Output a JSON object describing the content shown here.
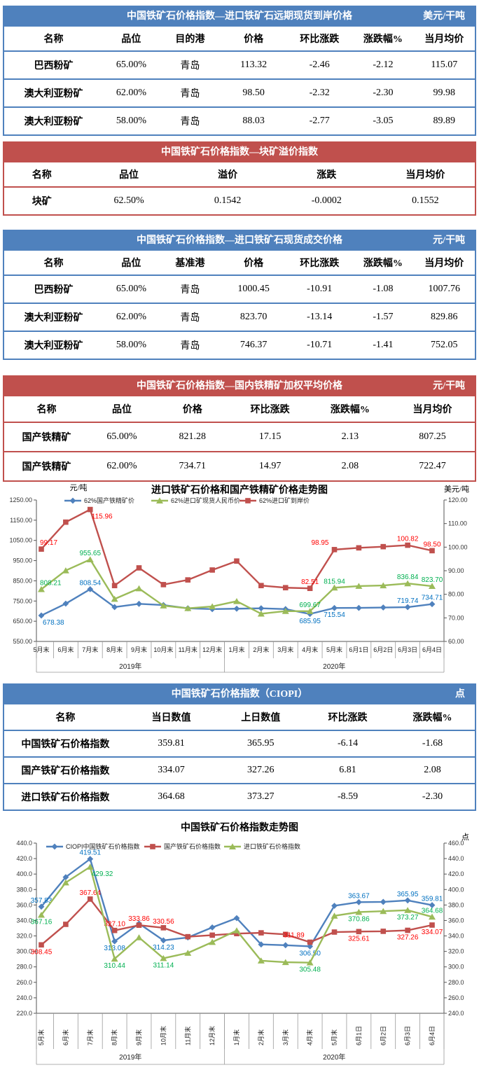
{
  "colors": {
    "header_blue": "#4F81BD",
    "header_red": "#C0504D",
    "series_blue": "#4F81BD",
    "series_red": "#C0504D",
    "series_green": "#9BBB59",
    "label_blue": "#0070C0",
    "label_red": "#FF0000",
    "label_green": "#00B050"
  },
  "tables": [
    {
      "theme": "blue",
      "title": "中国铁矿石价格指数—进口铁矿石远期现货到岸价格",
      "unit": "美元/干吨",
      "headers": [
        "名称",
        "品位",
        "目的港",
        "价格",
        "环比涨跌",
        "涨跌幅%",
        "当月均价"
      ],
      "rows": [
        [
          "巴西粉矿",
          "65.00%",
          "青岛",
          "113.32",
          "-2.46",
          "-2.12",
          "115.07"
        ],
        [
          "澳大利亚粉矿",
          "62.00%",
          "青岛",
          "98.50",
          "-2.32",
          "-2.30",
          "99.98"
        ],
        [
          "澳大利亚粉矿",
          "58.00%",
          "青岛",
          "88.03",
          "-2.77",
          "-3.05",
          "89.89"
        ]
      ]
    },
    {
      "theme": "red",
      "title": "中国铁矿石价格指数—块矿溢价指数",
      "unit": "",
      "headers": [
        "名称",
        "品位",
        "溢价",
        "涨跌",
        "当月均价"
      ],
      "rows": [
        [
          "块矿",
          "62.50%",
          "0.1542",
          "-0.0002",
          "0.1552"
        ]
      ]
    },
    {
      "theme": "blue",
      "title": "中国铁矿石价格指数—进口铁矿石现货成交价格",
      "unit": "元/干吨",
      "headers": [
        "名称",
        "品位",
        "基准港",
        "价格",
        "环比涨跌",
        "涨跌幅%",
        "当月均价"
      ],
      "rows": [
        [
          "巴西粉矿",
          "65.00%",
          "青岛",
          "1000.45",
          "-10.91",
          "-1.08",
          "1007.76"
        ],
        [
          "澳大利亚粉矿",
          "62.00%",
          "青岛",
          "823.70",
          "-13.14",
          "-1.57",
          "829.86"
        ],
        [
          "澳大利亚粉矿",
          "58.00%",
          "青岛",
          "746.37",
          "-10.71",
          "-1.41",
          "752.05"
        ]
      ]
    },
    {
      "theme": "red",
      "title": "中国铁矿石价格指数—国内铁精矿加权平均价格",
      "unit": "元/干吨",
      "headers": [
        "名称",
        "品位",
        "价格",
        "环比涨跌",
        "涨跌幅%",
        "当月均价"
      ],
      "rows": [
        [
          "国产铁精矿",
          "65.00%",
          "821.28",
          "17.15",
          "2.13",
          "807.25"
        ],
        [
          "国产铁精矿",
          "62.00%",
          "734.71",
          "14.97",
          "2.08",
          "722.47"
        ]
      ]
    },
    {
      "theme": "blue",
      "title": "中国铁矿石价格指数（CIOPI）",
      "unit": "点",
      "headers": [
        "名称",
        "当日数值",
        "上日数值",
        "环比涨跌",
        "涨跌幅%"
      ],
      "rows": [
        [
          "中国铁矿石价格指数",
          "359.81",
          "365.95",
          "-6.14",
          "-1.68"
        ],
        [
          "国产铁矿石价格指数",
          "334.07",
          "327.26",
          "6.81",
          "2.08"
        ],
        [
          "进口铁矿石价格指数",
          "364.68",
          "373.27",
          "-8.59",
          "-2.30"
        ]
      ]
    }
  ],
  "chart_data": [
    {
      "type": "line",
      "title": "进口铁矿石价格和国产铁精矿价格走势图",
      "left_axis_label": "元/吨",
      "right_axis_label": "美元/吨",
      "left_ylim": [
        550,
        1250
      ],
      "right_ylim": [
        60,
        120
      ],
      "left_ticks": [
        "1250.00",
        "1150.00",
        "1050.00",
        "950.00",
        "850.00",
        "750.00",
        "650.00",
        "550.00"
      ],
      "right_ticks": [
        "120.00",
        "110.00",
        "100.00",
        "90.00",
        "80.00",
        "70.00",
        "60.00"
      ],
      "categories": [
        "5月末",
        "6月末",
        "7月末",
        "8月末",
        "9月末",
        "10月末",
        "11月末",
        "12月末",
        "1月末",
        "2月末",
        "3月末",
        "4月末",
        "5月末",
        "6月1日",
        "6月2日",
        "6月3日",
        "6月4日"
      ],
      "year_groups": [
        {
          "label": "2019年",
          "count": 8
        },
        {
          "label": "2020年",
          "count": 9
        }
      ],
      "series": [
        {
          "name": "62%国产铁精矿价",
          "axis": "left",
          "marker": "diamond",
          "color_key": "blue",
          "values": [
            678.38,
            737,
            808.54,
            720,
            736,
            730,
            714,
            710,
            712,
            714,
            710,
            685.95,
            715.54,
            716,
            718,
            719.74,
            734.71
          ],
          "labels": [
            {
              "i": 0,
              "t": "678.38",
              "pos": "below-right"
            },
            {
              "i": 2,
              "t": "808.54",
              "pos": "above"
            },
            {
              "i": 11,
              "t": "685.95",
              "pos": "below"
            },
            {
              "i": 12,
              "t": "715.54",
              "pos": "below"
            },
            {
              "i": 15,
              "t": "719.74",
              "pos": "above"
            },
            {
              "i": 16,
              "t": "734.71",
              "pos": "above"
            }
          ]
        },
        {
          "name": "62%进口矿现货人民币价",
          "axis": "left",
          "marker": "triangle",
          "color_key": "green",
          "values": [
            808.21,
            901,
            955.65,
            760,
            812,
            727,
            714,
            723,
            749,
            687,
            700,
            699.67,
            815.94,
            824,
            827,
            836.84,
            823.7
          ],
          "labels": [
            {
              "i": 0,
              "t": "808.21",
              "pos": "above-right"
            },
            {
              "i": 2,
              "t": "955.65",
              "pos": "above"
            },
            {
              "i": 11,
              "t": "699.67",
              "pos": "above"
            },
            {
              "i": 12,
              "t": "815.94",
              "pos": "above"
            },
            {
              "i": 15,
              "t": "836.84",
              "pos": "above"
            },
            {
              "i": 16,
              "t": "823.70",
              "pos": "above"
            }
          ]
        },
        {
          "name": "62%进口矿到岸价",
          "axis": "right",
          "marker": "square",
          "color_key": "red",
          "values": [
            99.17,
            110.6,
            115.96,
            83.7,
            91.2,
            84.1,
            86.1,
            90.3,
            94.1,
            83.7,
            82.8,
            82.51,
            98.95,
            99.7,
            100.2,
            100.82,
            98.5
          ],
          "labels": [
            {
              "i": 0,
              "t": "99.17",
              "pos": "above-right"
            },
            {
              "i": 2,
              "t": "115.96",
              "pos": "below-right"
            },
            {
              "i": 11,
              "t": "82.51",
              "pos": "above"
            },
            {
              "i": 12,
              "t": "98.95",
              "pos": "above-left"
            },
            {
              "i": 15,
              "t": "100.82",
              "pos": "above"
            },
            {
              "i": 16,
              "t": "98.50",
              "pos": "above"
            }
          ]
        }
      ]
    },
    {
      "type": "line",
      "title": "中国铁矿石价格指数走势图",
      "left_axis_label": "",
      "right_axis_label": "点",
      "left_ylim": [
        220,
        440
      ],
      "right_ylim": [
        240,
        460
      ],
      "left_ticks": [
        "440.0",
        "420.0",
        "400.0",
        "380.0",
        "360.0",
        "340.0",
        "320.0",
        "300.0",
        "280.0",
        "260.0",
        "240.0",
        "220.0"
      ],
      "right_ticks": [
        "460.0",
        "440.0",
        "420.0",
        "400.0",
        "380.0",
        "360.0",
        "340.0",
        "320.0",
        "300.0",
        "280.0",
        "260.0",
        "240.0"
      ],
      "categories": [
        "5月末",
        "6月末",
        "7月末",
        "8月末",
        "9月末",
        "10月末",
        "11月末",
        "12月末",
        "1月末",
        "2月末",
        "3月末",
        "4月末",
        "5月末",
        "6月1日",
        "6月2日",
        "6月3日",
        "6月4日"
      ],
      "year_groups": [
        {
          "label": "2019年",
          "count": 8
        },
        {
          "label": "2020年",
          "count": 9
        }
      ],
      "series": [
        {
          "name": "CIOPI中国铁矿石价格指数",
          "axis": "left",
          "marker": "diamond",
          "color_key": "blue",
          "values": [
            357.83,
            396,
            419.51,
            313.08,
            336,
            314.23,
            318,
            331,
            343,
            309,
            308,
            306.5,
            359,
            363.67,
            364,
            365.95,
            359.81
          ],
          "labels": [
            {
              "i": 0,
              "t": "357.83",
              "pos": "above"
            },
            {
              "i": 2,
              "t": "419.51",
              "pos": "above"
            },
            {
              "i": 3,
              "t": "313.08",
              "pos": "below"
            },
            {
              "i": 5,
              "t": "314.23",
              "pos": "below"
            },
            {
              "i": 11,
              "t": "306.50",
              "pos": "below"
            },
            {
              "i": 13,
              "t": "363.67",
              "pos": "above"
            },
            {
              "i": 15,
              "t": "365.95",
              "pos": "above"
            },
            {
              "i": 16,
              "t": "359.81",
              "pos": "above"
            }
          ]
        },
        {
          "name": "国产铁矿石价格指数",
          "axis": "left",
          "marker": "square",
          "color_key": "red",
          "values": [
            308.45,
            335,
            367.64,
            327.1,
            333.86,
            330.56,
            319,
            321,
            323,
            324,
            322,
            311.89,
            325,
            325.61,
            326,
            327.26,
            334.07
          ],
          "labels": [
            {
              "i": 0,
              "t": "308.45",
              "pos": "below"
            },
            {
              "i": 2,
              "t": "367.64",
              "pos": "above"
            },
            {
              "i": 3,
              "t": "327.10",
              "pos": "above"
            },
            {
              "i": 4,
              "t": "333.86",
              "pos": "above"
            },
            {
              "i": 5,
              "t": "330.56",
              "pos": "above"
            },
            {
              "i": 11,
              "t": "311.89",
              "pos": "above-left"
            },
            {
              "i": 13,
              "t": "325.61",
              "pos": "below"
            },
            {
              "i": 15,
              "t": "327.26",
              "pos": "below"
            },
            {
              "i": 16,
              "t": "334.07",
              "pos": "below"
            }
          ]
        },
        {
          "name": "进口铁矿石价格指数",
          "axis": "right",
          "marker": "triangle",
          "color_key": "green",
          "values": [
            367.16,
            409,
            429.32,
            310.44,
            338,
            311.14,
            318,
            332,
            347,
            308,
            306,
            305.48,
            366,
            370.86,
            372,
            373.27,
            364.68
          ],
          "labels": [
            {
              "i": 0,
              "t": "367.16",
              "pos": "below"
            },
            {
              "i": 2,
              "t": "429.32",
              "pos": "below-right"
            },
            {
              "i": 3,
              "t": "310.44",
              "pos": "below"
            },
            {
              "i": 5,
              "t": "311.14",
              "pos": "below"
            },
            {
              "i": 11,
              "t": "305.48",
              "pos": "below"
            },
            {
              "i": 13,
              "t": "370.86",
              "pos": "below"
            },
            {
              "i": 15,
              "t": "373.27",
              "pos": "below"
            },
            {
              "i": 16,
              "t": "364.68",
              "pos": "above"
            }
          ]
        }
      ]
    }
  ]
}
